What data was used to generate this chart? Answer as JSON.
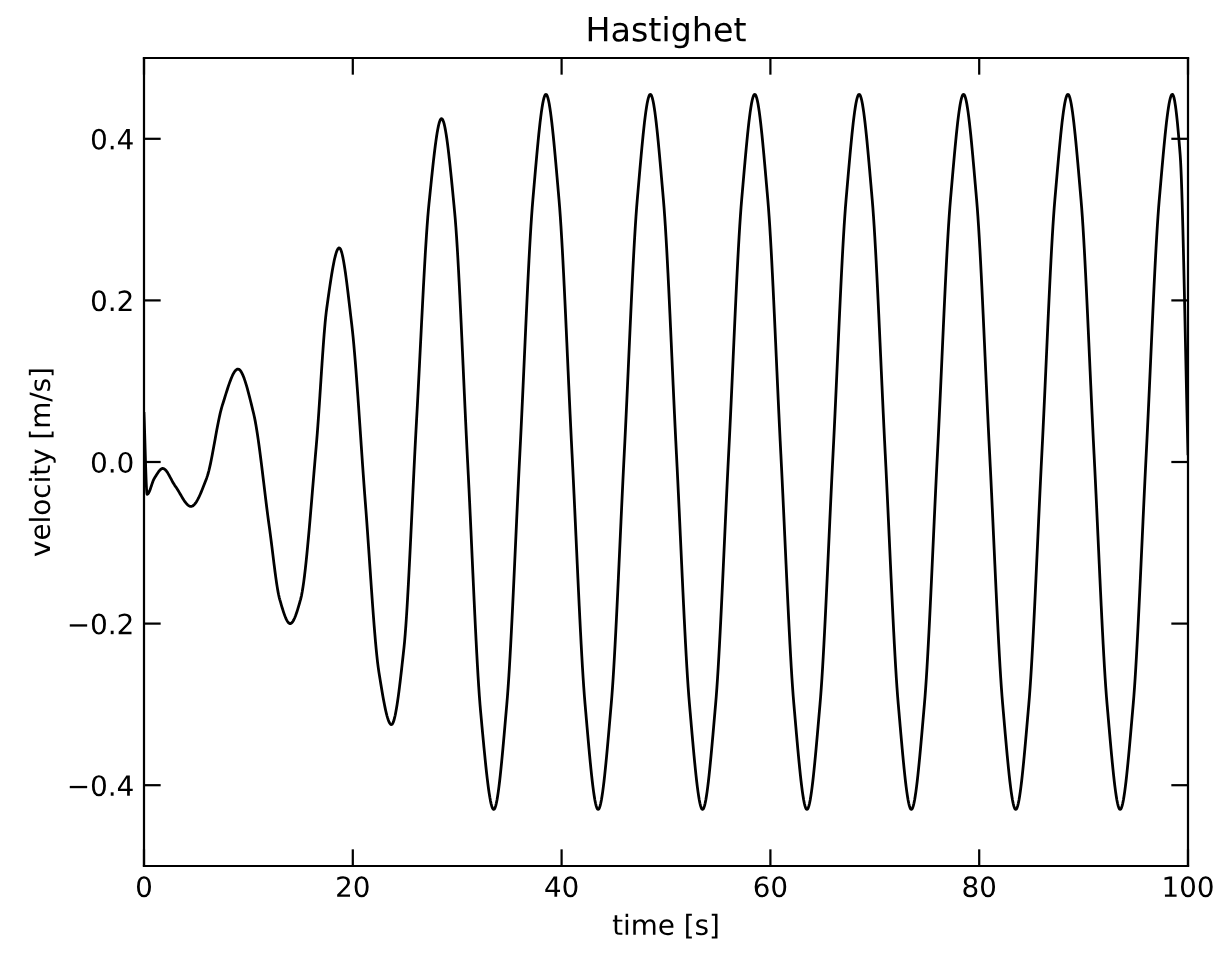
{
  "chart_data": {
    "type": "line",
    "title": "Hastighet",
    "xlabel": "time [s]",
    "ylabel": "velocity [m/s]",
    "xlim": [
      0,
      100
    ],
    "xticks": [
      0,
      20,
      40,
      60,
      80,
      100
    ],
    "ylim": [
      -0.5,
      0.5
    ],
    "yticks": [
      {
        "value": -0.4,
        "label": "−0.4"
      },
      {
        "value": -0.2,
        "label": "−0.2"
      },
      {
        "value": 0,
        "label": "0.0"
      },
      0.2,
      0.4
    ],
    "grid": false,
    "legend": false,
    "marker": "none",
    "line_style": "solid",
    "series": [
      {
        "color": "#000000",
        "x": [
          0,
          0.3,
          1,
          1.8,
          3,
          4.5,
          6,
          7.5,
          9,
          10.5,
          12,
          13,
          14,
          15,
          16.5,
          17.5,
          18.7,
          19.9,
          21.2,
          22.5,
          23.7,
          24.9,
          26.1,
          27.3,
          28.5,
          29.75,
          31,
          32.25,
          33.5,
          34.75,
          36,
          37.25,
          38.5,
          39.75,
          41,
          42.25,
          43.5,
          44.75,
          46,
          47.25,
          48.5,
          49.75,
          51,
          52.25,
          53.5,
          54.75,
          56,
          57.25,
          58.5,
          59.75,
          61,
          62.25,
          63.5,
          64.75,
          66,
          67.25,
          68.5,
          69.75,
          71,
          72.25,
          73.5,
          74.75,
          76,
          77.25,
          78.5,
          79.75,
          81,
          82.25,
          83.5,
          84.75,
          86,
          87.25,
          88.5,
          89.75,
          91,
          92.25,
          93.5,
          94.75,
          96,
          97.25,
          98.5,
          99.25,
          100
        ],
        "values": [
          0.06,
          -0.04,
          -0.02,
          -0.008,
          -0.03,
          -0.055,
          -0.02,
          0.07,
          0.115,
          0.06,
          -0.08,
          -0.17,
          -0.2,
          -0.17,
          0.02,
          0.19,
          0.265,
          0.17,
          -0.05,
          -0.26,
          -0.325,
          -0.23,
          0.05,
          0.32,
          0.425,
          0.31,
          0.0,
          -0.31,
          -0.43,
          -0.3,
          0.01,
          0.325,
          0.455,
          0.325,
          0.01,
          -0.3,
          -0.43,
          -0.3,
          0.01,
          0.325,
          0.455,
          0.325,
          0.01,
          -0.3,
          -0.43,
          -0.3,
          0.01,
          0.325,
          0.455,
          0.325,
          0.01,
          -0.3,
          -0.43,
          -0.3,
          0.01,
          0.325,
          0.455,
          0.325,
          0.01,
          -0.3,
          -0.43,
          -0.3,
          0.01,
          0.325,
          0.455,
          0.325,
          0.01,
          -0.3,
          -0.43,
          -0.3,
          0.01,
          0.325,
          0.455,
          0.325,
          0.01,
          -0.3,
          -0.43,
          -0.3,
          0.01,
          0.325,
          0.455,
          0.38,
          0.01
        ]
      }
    ]
  }
}
